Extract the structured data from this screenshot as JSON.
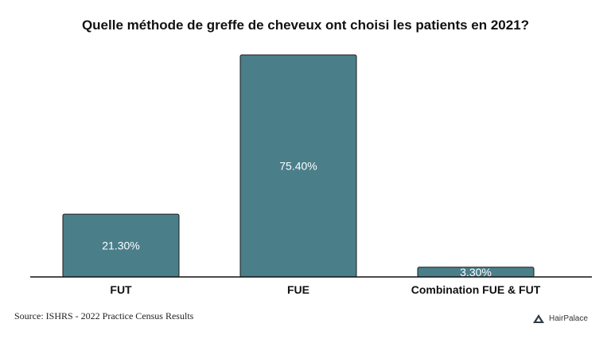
{
  "chart_data": {
    "type": "bar",
    "title": "Quelle méthode de greffe de cheveux ont choisi les patients en 2021?",
    "categories": [
      "FUT",
      "FUE",
      "Combination FUE & FUT"
    ],
    "values": [
      21.3,
      75.4,
      3.3
    ],
    "value_labels": [
      "21.30%",
      "75.40%",
      "3.30%"
    ],
    "ylim": [
      0,
      75.4
    ],
    "xlabel": "",
    "ylabel": "",
    "grid": false,
    "bar_color": "#4a7f8a"
  },
  "source": "Source: ISHRS - 2022 Practice Census Results",
  "brand": {
    "name": "HairPalace",
    "icon": "hairpalace-logo-icon"
  }
}
